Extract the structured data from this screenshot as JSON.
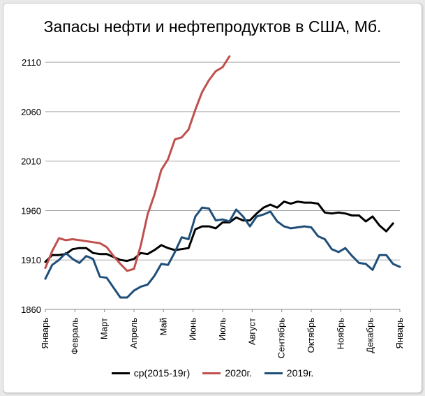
{
  "chart_data": {
    "type": "line",
    "title": "Запасы нефти и нефтепродуктов в США, Мб.",
    "xlabel": "",
    "ylabel": "",
    "ylim": [
      1860,
      2120
    ],
    "yticks": [
      1860,
      1910,
      1960,
      2010,
      2060,
      2110
    ],
    "grid": true,
    "legend_position": "bottom",
    "x_tick_labels": [
      "Январь",
      "Февраль",
      "Март",
      "Апрель",
      "Май",
      "Июнь",
      "Июль",
      "Август",
      "Сентябрь",
      "Октябрь",
      "Ноябрь",
      "Декабрь",
      "Январь"
    ],
    "x_tick_positions": [
      0,
      4.33,
      8.67,
      13,
      17.33,
      21.67,
      26,
      30.33,
      34.67,
      39,
      43.33,
      47.67,
      52
    ],
    "series": [
      {
        "name": "ср(2015-19г)",
        "color": "#000000",
        "values": [
          1908,
          1915,
          1915,
          1916,
          1921,
          1922,
          1922,
          1917,
          1916,
          1916,
          1913,
          1910,
          1909,
          1911,
          1917,
          1916,
          1920,
          1925,
          1922,
          1920,
          1921,
          1922,
          1941,
          1944,
          1944,
          1942,
          1948,
          1948,
          1953,
          1950,
          1950,
          1957,
          1963,
          1966,
          1963,
          1969,
          1967,
          1969,
          1968,
          1968,
          1967,
          1958,
          1957,
          1958,
          1957,
          1955,
          1955,
          1949,
          1954,
          1945,
          1939,
          1947
        ]
      },
      {
        "name": "2020г.",
        "color": "#c0504d",
        "values": [
          1902,
          1919,
          1932,
          1930,
          1931,
          1930,
          1929,
          1928,
          1927,
          1923,
          1914,
          1906,
          1899,
          1901,
          1925,
          1956,
          1976,
          2001,
          2012,
          2032,
          2034,
          2042,
          2062,
          2080,
          2092,
          2101,
          2105,
          2116
        ]
      },
      {
        "name": "2019г.",
        "color": "#1f4e79",
        "values": [
          1891,
          1905,
          1910,
          1917,
          1911,
          1907,
          1914,
          1911,
          1893,
          1892,
          1882,
          1872,
          1872,
          1879,
          1883,
          1885,
          1894,
          1906,
          1905,
          1918,
          1933,
          1931,
          1954,
          1963,
          1962,
          1950,
          1951,
          1949,
          1961,
          1954,
          1944,
          1954,
          1956,
          1959,
          1949,
          1944,
          1942,
          1943,
          1944,
          1943,
          1934,
          1931,
          1921,
          1918,
          1922,
          1914,
          1907,
          1906,
          1900,
          1915,
          1915,
          1906,
          1903
        ]
      }
    ]
  }
}
